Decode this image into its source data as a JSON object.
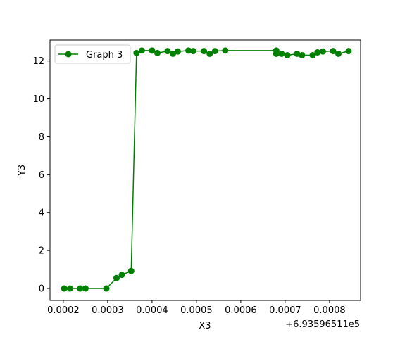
{
  "chart_data": {
    "type": "line",
    "title": "",
    "xlabel": "X3",
    "ylabel": "Y3",
    "x_offset_text": "+6.93596511e5",
    "xlim": [
      0.00017,
      0.00087
    ],
    "ylim": [
      -0.63,
      13.1
    ],
    "x_ticks": [
      0.0002,
      0.0003,
      0.0004,
      0.0005,
      0.0006,
      0.0007,
      0.0008
    ],
    "x_tick_labels": [
      "0.0002",
      "0.0003",
      "0.0004",
      "0.0005",
      "0.0006",
      "0.0007",
      "0.0008"
    ],
    "y_ticks": [
      0,
      2,
      4,
      6,
      8,
      10,
      12
    ],
    "y_tick_labels": [
      "0",
      "2",
      "4",
      "6",
      "8",
      "10",
      "12"
    ],
    "grid": false,
    "legend_position": "upper-left",
    "series": [
      {
        "name": "Graph 3",
        "color": "#008000",
        "marker": "circle",
        "x": [
          0.000202,
          0.000215,
          0.000238,
          0.00025,
          0.000297,
          0.00032,
          0.000332,
          0.000353,
          0.000365,
          0.000377,
          0.0004,
          0.000412,
          0.000435,
          0.000447,
          0.000458,
          0.000482,
          0.000493,
          0.000517,
          0.00053,
          0.000542,
          0.000565,
          0.00068,
          0.00068,
          0.000692,
          0.000705,
          0.000727,
          0.000738,
          0.000762,
          0.000773,
          0.000785,
          0.000808,
          0.00082,
          0.000843
        ],
        "y": [
          0.0,
          0.0,
          0.0,
          0.0,
          0.0,
          0.55,
          0.72,
          0.92,
          12.42,
          12.55,
          12.55,
          12.42,
          12.52,
          12.38,
          12.5,
          12.55,
          12.52,
          12.52,
          12.38,
          12.52,
          12.55,
          12.55,
          12.38,
          12.38,
          12.3,
          12.38,
          12.3,
          12.3,
          12.45,
          12.5,
          12.52,
          12.38,
          12.52
        ]
      }
    ]
  }
}
